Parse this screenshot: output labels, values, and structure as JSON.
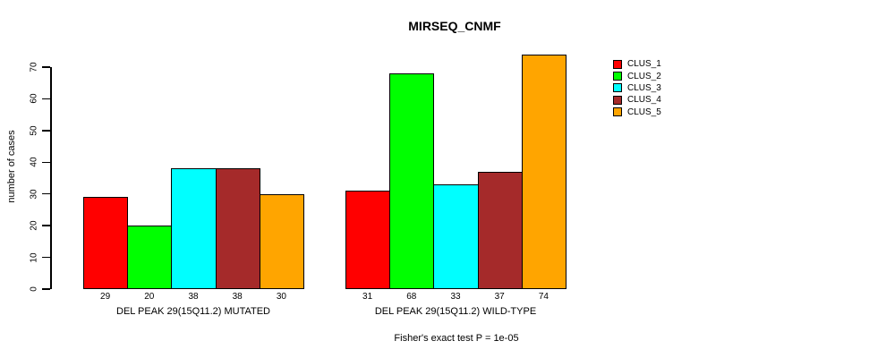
{
  "chart_data": {
    "type": "bar",
    "title": "MIRSEQ_CNMF",
    "xlabel": "",
    "ylabel": "number of cases",
    "categories": [
      "DEL PEAK 29(15Q11.2) MUTATED",
      "DEL PEAK 29(15Q11.2) WILD-TYPE"
    ],
    "series": [
      {
        "name": "CLUS_1",
        "color": "#FF0000",
        "values": [
          29,
          31
        ]
      },
      {
        "name": "CLUS_2",
        "color": "#00FF00",
        "values": [
          20,
          68
        ]
      },
      {
        "name": "CLUS_3",
        "color": "#00FFFF",
        "values": [
          38,
          33
        ]
      },
      {
        "name": "CLUS_4",
        "color": "#A52A2A",
        "values": [
          38,
          37
        ]
      },
      {
        "name": "CLUS_5",
        "color": "#FFA500",
        "values": [
          30,
          74
        ]
      }
    ],
    "bar_value_labels": [
      [
        "29",
        "20",
        "38",
        "38",
        "30"
      ],
      [
        "31",
        "68",
        "33",
        "37",
        "74"
      ]
    ],
    "yticks": [
      0,
      10,
      20,
      30,
      40,
      50,
      60,
      70
    ],
    "ylim": [
      0,
      70
    ],
    "grid": false,
    "legend_position": "right",
    "annotation": "Fisher's exact test P = 1e-05"
  }
}
